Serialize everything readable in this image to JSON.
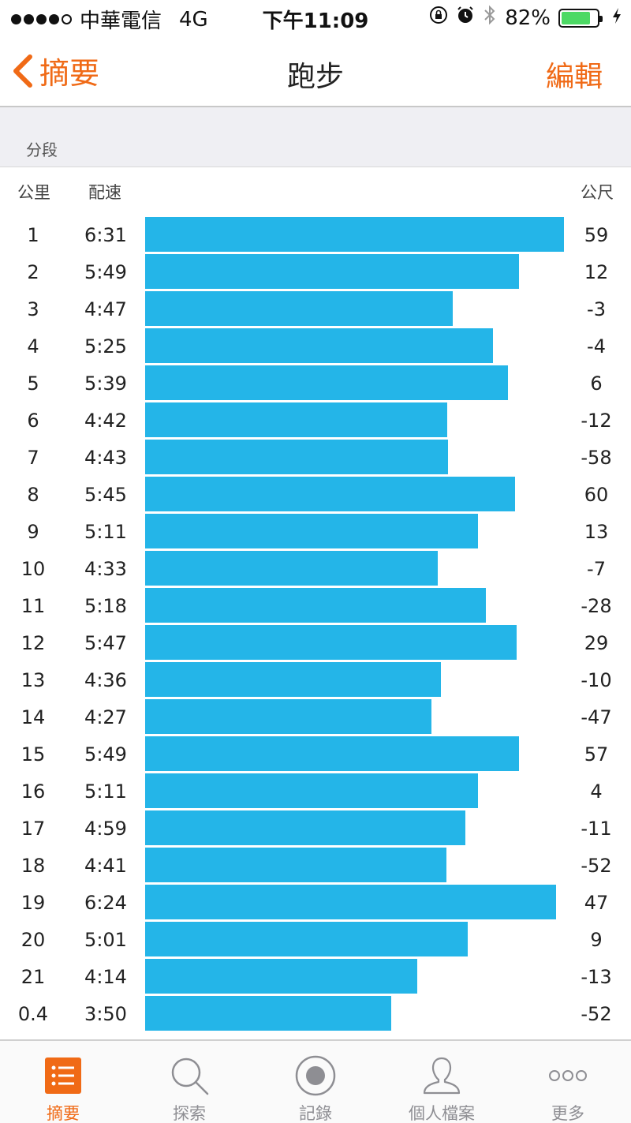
{
  "status": {
    "carrier": "中華電信",
    "network": "4G",
    "time": "下午11:09",
    "battery_percent": "82%",
    "battery_level": 0.82,
    "battery_color": "#4cd964"
  },
  "nav": {
    "back_label": "摘要",
    "title": "跑步",
    "edit_label": "編輯",
    "accent_color": "#f06a16"
  },
  "section": {
    "title": "分段"
  },
  "columns": {
    "km": "公里",
    "pace": "配速",
    "elevation": "公尺"
  },
  "bar_color": "#24b5e8",
  "splits": [
    {
      "km": "1",
      "pace": "6:31",
      "elev": "59"
    },
    {
      "km": "2",
      "pace": "5:49",
      "elev": "12"
    },
    {
      "km": "3",
      "pace": "4:47",
      "elev": "-3"
    },
    {
      "km": "4",
      "pace": "5:25",
      "elev": "-4"
    },
    {
      "km": "5",
      "pace": "5:39",
      "elev": "6"
    },
    {
      "km": "6",
      "pace": "4:42",
      "elev": "-12"
    },
    {
      "km": "7",
      "pace": "4:43",
      "elev": "-58"
    },
    {
      "km": "8",
      "pace": "5:45",
      "elev": "60"
    },
    {
      "km": "9",
      "pace": "5:11",
      "elev": "13"
    },
    {
      "km": "10",
      "pace": "4:33",
      "elev": "-7"
    },
    {
      "km": "11",
      "pace": "5:18",
      "elev": "-28"
    },
    {
      "km": "12",
      "pace": "5:47",
      "elev": "29"
    },
    {
      "km": "13",
      "pace": "4:36",
      "elev": "-10"
    },
    {
      "km": "14",
      "pace": "4:27",
      "elev": "-47"
    },
    {
      "km": "15",
      "pace": "5:49",
      "elev": "57"
    },
    {
      "km": "16",
      "pace": "5:11",
      "elev": "4"
    },
    {
      "km": "17",
      "pace": "4:59",
      "elev": "-11"
    },
    {
      "km": "18",
      "pace": "4:41",
      "elev": "-52"
    },
    {
      "km": "19",
      "pace": "6:24",
      "elev": "47"
    },
    {
      "km": "20",
      "pace": "5:01",
      "elev": "9"
    },
    {
      "km": "21",
      "pace": "4:14",
      "elev": "-13"
    },
    {
      "km": "0.4",
      "pace": "3:50",
      "elev": "-52"
    }
  ],
  "tabs": [
    {
      "label": "摘要",
      "icon": "list-icon",
      "active": true
    },
    {
      "label": "探索",
      "icon": "search-icon",
      "active": false
    },
    {
      "label": "記錄",
      "icon": "record-icon",
      "active": false
    },
    {
      "label": "個人檔案",
      "icon": "person-icon",
      "active": false
    },
    {
      "label": "更多",
      "icon": "more-icon",
      "active": false
    }
  ]
}
